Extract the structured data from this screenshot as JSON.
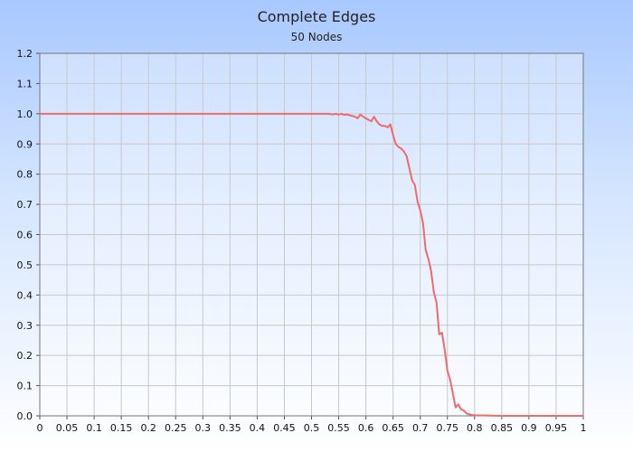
{
  "chart_data": {
    "type": "line",
    "title": "Complete Edges",
    "subtitle": "50 Nodes",
    "xlim": [
      0,
      1
    ],
    "ylim": [
      0,
      1.2
    ],
    "x_ticks": [
      "0",
      "0.05",
      "0.1",
      "0.15",
      "0.2",
      "0.25",
      "0.3",
      "0.35",
      "0.4",
      "0.45",
      "0.5",
      "0.55",
      "0.6",
      "0.65",
      "0.7",
      "0.75",
      "0.8",
      "0.85",
      "0.9",
      "0.95",
      "1"
    ],
    "y_ticks": [
      "0.0",
      "0.1",
      "0.2",
      "0.3",
      "0.4",
      "0.5",
      "0.6",
      "0.7",
      "0.8",
      "0.9",
      "1.0",
      "1.1",
      "1.2"
    ],
    "grid": true,
    "series": [
      {
        "color": "#f06a6a",
        "points": [
          [
            0,
            1.0
          ],
          [
            0.05,
            1.0
          ],
          [
            0.1,
            1.0
          ],
          [
            0.15,
            1.0
          ],
          [
            0.2,
            1.0
          ],
          [
            0.25,
            1.0
          ],
          [
            0.3,
            1.0
          ],
          [
            0.35,
            1.0
          ],
          [
            0.4,
            1.0
          ],
          [
            0.45,
            1.0
          ],
          [
            0.5,
            1.0
          ],
          [
            0.53,
            1.0
          ],
          [
            0.54,
            0.998
          ],
          [
            0.545,
            1.0
          ],
          [
            0.55,
            0.997
          ],
          [
            0.555,
            1.0
          ],
          [
            0.56,
            0.996
          ],
          [
            0.565,
            0.998
          ],
          [
            0.57,
            0.995
          ],
          [
            0.575,
            0.993
          ],
          [
            0.58,
            0.99
          ],
          [
            0.585,
            0.985
          ],
          [
            0.59,
            0.998
          ],
          [
            0.595,
            0.99
          ],
          [
            0.6,
            0.985
          ],
          [
            0.605,
            0.98
          ],
          [
            0.61,
            0.975
          ],
          [
            0.615,
            0.99
          ],
          [
            0.62,
            0.975
          ],
          [
            0.625,
            0.965
          ],
          [
            0.63,
            0.96
          ],
          [
            0.635,
            0.96
          ],
          [
            0.64,
            0.955
          ],
          [
            0.645,
            0.965
          ],
          [
            0.65,
            0.93
          ],
          [
            0.655,
            0.9
          ],
          [
            0.66,
            0.89
          ],
          [
            0.665,
            0.885
          ],
          [
            0.67,
            0.875
          ],
          [
            0.675,
            0.86
          ],
          [
            0.68,
            0.82
          ],
          [
            0.685,
            0.78
          ],
          [
            0.69,
            0.765
          ],
          [
            0.695,
            0.71
          ],
          [
            0.7,
            0.68
          ],
          [
            0.705,
            0.64
          ],
          [
            0.71,
            0.55
          ],
          [
            0.715,
            0.52
          ],
          [
            0.72,
            0.48
          ],
          [
            0.725,
            0.41
          ],
          [
            0.73,
            0.375
          ],
          [
            0.735,
            0.27
          ],
          [
            0.74,
            0.275
          ],
          [
            0.745,
            0.22
          ],
          [
            0.75,
            0.15
          ],
          [
            0.755,
            0.12
          ],
          [
            0.76,
            0.075
          ],
          [
            0.765,
            0.028
          ],
          [
            0.77,
            0.038
          ],
          [
            0.775,
            0.022
          ],
          [
            0.78,
            0.018
          ],
          [
            0.785,
            0.008
          ],
          [
            0.79,
            0.005
          ],
          [
            0.795,
            0.003
          ],
          [
            0.8,
            0.002
          ],
          [
            0.85,
            0.0
          ],
          [
            0.9,
            0.0
          ],
          [
            0.95,
            0.0
          ],
          [
            1.0,
            0.0
          ]
        ]
      }
    ]
  }
}
